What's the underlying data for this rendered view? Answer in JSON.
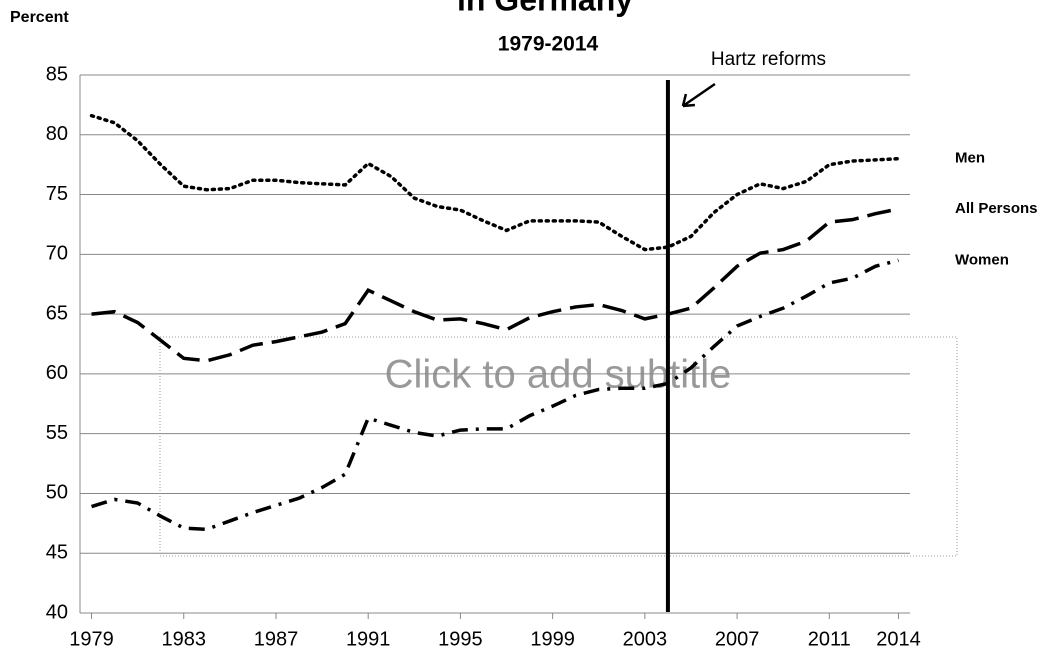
{
  "chart_data": {
    "type": "line",
    "title": "in Germany",
    "subtitle": "1979-2014",
    "y_label": "Percent",
    "placeholder": "Click to add subtitle",
    "annotation": {
      "text": "Hartz reforms",
      "x": 2004
    },
    "x": [
      1979,
      1980,
      1981,
      1982,
      1983,
      1984,
      1985,
      1986,
      1987,
      1988,
      1989,
      1990,
      1991,
      1992,
      1993,
      1994,
      1995,
      1996,
      1997,
      1998,
      1999,
      2000,
      2001,
      2002,
      2003,
      2004,
      2005,
      2006,
      2007,
      2008,
      2009,
      2010,
      2011,
      2012,
      2013,
      2014
    ],
    "series": [
      {
        "name": "Men",
        "color": "#000000",
        "dash": "dotted",
        "values": [
          81.6,
          81,
          79.5,
          77.5,
          75.7,
          75.4,
          75.5,
          76.2,
          76.2,
          76,
          75.9,
          75.8,
          77.6,
          76.5,
          74.7,
          74,
          73.7,
          72.8,
          72,
          72.8,
          72.8,
          72.8,
          72.7,
          71.5,
          70.4,
          70.6,
          71.5,
          73.5,
          75,
          75.9,
          75.5,
          76.1,
          77.5,
          77.8,
          77.9,
          78
        ]
      },
      {
        "name": "All Persons",
        "color": "#000000",
        "dash": "dashed",
        "values": [
          65,
          65.2,
          64.3,
          62.8,
          61.3,
          61.1,
          61.6,
          62.4,
          62.7,
          63.1,
          63.5,
          64.2,
          67,
          66.1,
          65.2,
          64.5,
          64.6,
          64.2,
          63.7,
          64.7,
          65.2,
          65.6,
          65.8,
          65.3,
          64.6,
          65,
          65.5,
          67.2,
          69,
          70.1,
          70.4,
          71.1,
          72.7,
          72.9,
          73.4,
          73.8
        ]
      },
      {
        "name": "Women",
        "color": "#000000",
        "dash": "dashdot",
        "values": [
          48.9,
          49.5,
          49.2,
          48.1,
          47.1,
          47,
          47.7,
          48.4,
          49,
          49.6,
          50.5,
          51.6,
          56.3,
          55.7,
          55.1,
          54.8,
          55.3,
          55.4,
          55.4,
          56.5,
          57.3,
          58.2,
          58.7,
          58.8,
          58.8,
          59.2,
          60.5,
          62.3,
          64,
          64.8,
          65.5,
          66.5,
          67.6,
          68,
          69,
          69.5
        ]
      }
    ],
    "xlim": [
      1978.5,
      2014.5
    ],
    "xticks": [
      1979,
      1983,
      1987,
      1991,
      1995,
      1999,
      2003,
      2007,
      2011,
      2014
    ],
    "ylim": [
      40,
      85
    ],
    "yticks": [
      40,
      45,
      50,
      55,
      60,
      65,
      70,
      75,
      80,
      85
    ],
    "grid": true
  }
}
